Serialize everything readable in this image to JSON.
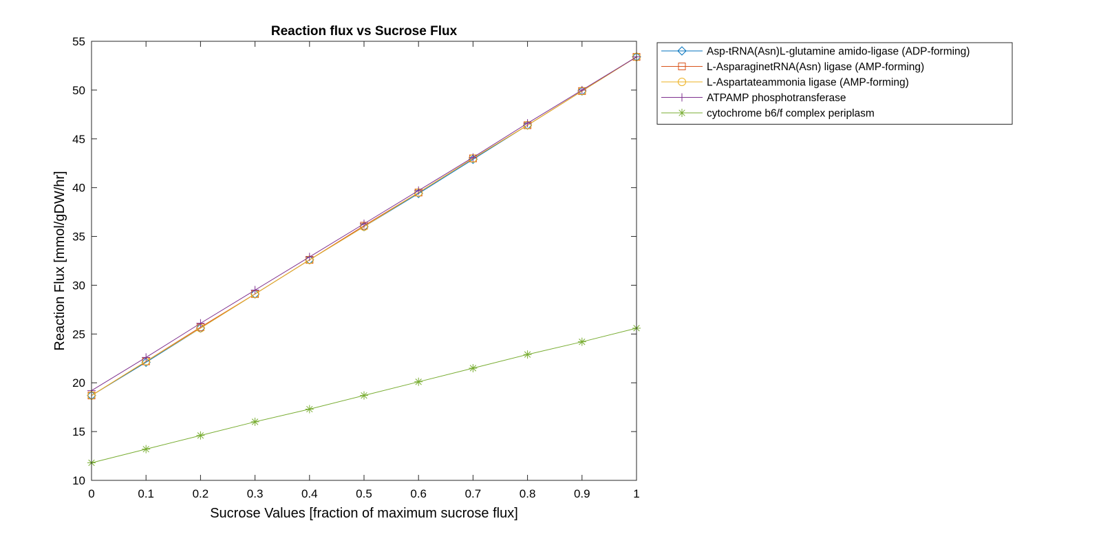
{
  "chart_data": {
    "type": "line",
    "title": "Reaction flux vs Sucrose Flux",
    "xlabel": "Sucrose Values [fraction of maximum sucrose flux]",
    "ylabel": "Reaction Flux [mmol/gDW/hr]",
    "xlim": [
      0,
      1
    ],
    "ylim": [
      10,
      55
    ],
    "xticks": [
      0,
      0.1,
      0.2,
      0.3,
      0.4,
      0.5,
      0.6,
      0.7,
      0.8,
      0.9,
      1
    ],
    "xtick_labels": [
      "0",
      "0.1",
      "0.2",
      "0.3",
      "0.4",
      "0.5",
      "0.6",
      "0.7",
      "0.8",
      "0.9",
      "1"
    ],
    "yticks": [
      10,
      15,
      20,
      25,
      30,
      35,
      40,
      45,
      50,
      55
    ],
    "ytick_labels": [
      "10",
      "15",
      "20",
      "25",
      "30",
      "35",
      "40",
      "45",
      "50",
      "55"
    ],
    "grid": false,
    "legend_position": "outside-top-right",
    "x": [
      0,
      0.1,
      0.2,
      0.3,
      0.4,
      0.5,
      0.6,
      0.7,
      0.8,
      0.9,
      1
    ],
    "series": [
      {
        "name": "Asp-tRNA(Asn)L-glutamine amido-ligase (ADP-forming)",
        "color": "#0072BD",
        "marker": "diamond",
        "values": [
          18.7,
          22.1,
          25.6,
          29.1,
          32.6,
          36.0,
          39.4,
          42.9,
          46.4,
          49.9,
          53.4
        ]
      },
      {
        "name": "L-AsparaginetRNA(Asn) ligase (AMP-forming)",
        "color": "#D95319",
        "marker": "square",
        "values": [
          18.7,
          22.2,
          25.7,
          29.1,
          32.6,
          36.1,
          39.5,
          43.0,
          46.4,
          49.9,
          53.4
        ]
      },
      {
        "name": "L-Aspartateammonia ligase (AMP-forming)",
        "color": "#EDB120",
        "marker": "circle",
        "values": [
          18.7,
          22.2,
          25.6,
          29.1,
          32.6,
          36.0,
          39.5,
          43.0,
          46.4,
          49.9,
          53.4
        ]
      },
      {
        "name": "ATPAMP phosphotransferase",
        "color": "#7E2F8E",
        "marker": "plus",
        "values": [
          19.2,
          22.6,
          26.1,
          29.5,
          32.9,
          36.3,
          39.7,
          43.1,
          46.6,
          50.0,
          53.4
        ]
      },
      {
        "name": "cytochrome b6/f complex periplasm",
        "color": "#77AC30",
        "marker": "asterisk",
        "values": [
          11.8,
          13.2,
          14.6,
          16.0,
          17.3,
          18.7,
          20.1,
          21.5,
          22.9,
          24.2,
          25.6
        ]
      }
    ]
  }
}
